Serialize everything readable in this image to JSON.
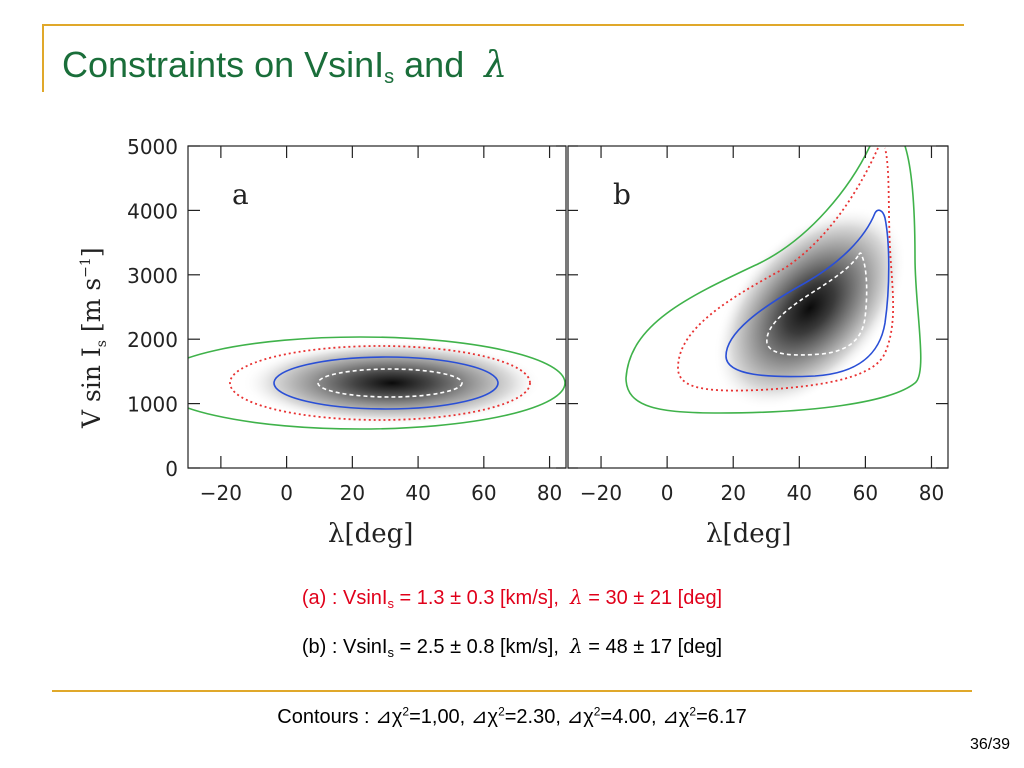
{
  "slide": {
    "title_main": "Constraints on VsinI",
    "title_sub": "s",
    "title_and": " and",
    "title_lambda": "λ",
    "page": "36/39"
  },
  "figure": {
    "ylabel": "V sin I",
    "ylabel_sub": "s",
    "ylabel_units": "[m s",
    "ylabel_exp": "−1",
    "ylabel_close": "]",
    "xlabel": "λ[deg]",
    "y_ticks": [
      "0",
      "1000",
      "2000",
      "3000",
      "4000",
      "5000"
    ],
    "x_ticks": [
      "−20",
      "0",
      "20",
      "40",
      "60",
      "80"
    ],
    "panel_a_label": "a",
    "panel_b_label": "b"
  },
  "chart_data": {
    "type": "contour",
    "xlim": [
      -30,
      85
    ],
    "ylim": [
      0,
      5000
    ],
    "x_unit": "deg",
    "y_unit": "m s^-1",
    "panels": [
      {
        "label": "a",
        "peak": {
          "x": 30,
          "y": 1300
        },
        "contours": [
          {
            "level": "Δχ²=1.00",
            "color": "#ffffff",
            "style": "dashed",
            "cx": 30,
            "cy": 1300,
            "rx": 19,
            "ry": 200
          },
          {
            "level": "Δχ²=2.30",
            "color": "#2a4fd6",
            "style": "solid",
            "cx": 30,
            "cy": 1300,
            "rx": 31,
            "ry": 400
          },
          {
            "level": "Δχ²=4.00",
            "color": "#e83232",
            "style": "dotted",
            "cx": 28,
            "cy": 1300,
            "rx": 42,
            "ry": 560
          },
          {
            "level": "Δχ²=6.17",
            "color": "#3fb24a",
            "style": "solid",
            "cx": 25,
            "cy": 1300,
            "rx": 58,
            "ry": 620
          }
        ]
      },
      {
        "label": "b",
        "peak": {
          "x": 48,
          "y": 2500
        },
        "contours": [
          {
            "level": "Δχ²=1.00",
            "color": "#ffffff",
            "style": "dashed"
          },
          {
            "level": "Δχ²=2.30",
            "color": "#2a4fd6",
            "style": "solid"
          },
          {
            "level": "Δχ²=4.00",
            "color": "#e83232",
            "style": "dotted"
          },
          {
            "level": "Δχ²=6.17",
            "color": "#3fb24a",
            "style": "solid"
          }
        ]
      }
    ]
  },
  "results": {
    "a_prefix": "(a) : VsinI",
    "a_sub": "s",
    "a_mid": " = 1.3 ± 0.3 [km/s],",
    "a_lambda": "λ",
    "a_end": " = 30 ± 21 [deg]",
    "b_prefix": "(b) : VsinI",
    "b_sub": "s",
    "b_mid": " = 2.5 ± 0.8 [km/s],",
    "b_lambda": "λ",
    "b_end": " = 48 ± 17 [deg]"
  },
  "contours_line": {
    "label": "Contours : ",
    "items": [
      "⊿χ",
      "=1,00, ⊿χ",
      "=2.30, ⊿χ",
      "=4.00, ⊿χ",
      "=6.17"
    ],
    "exp": "2"
  }
}
